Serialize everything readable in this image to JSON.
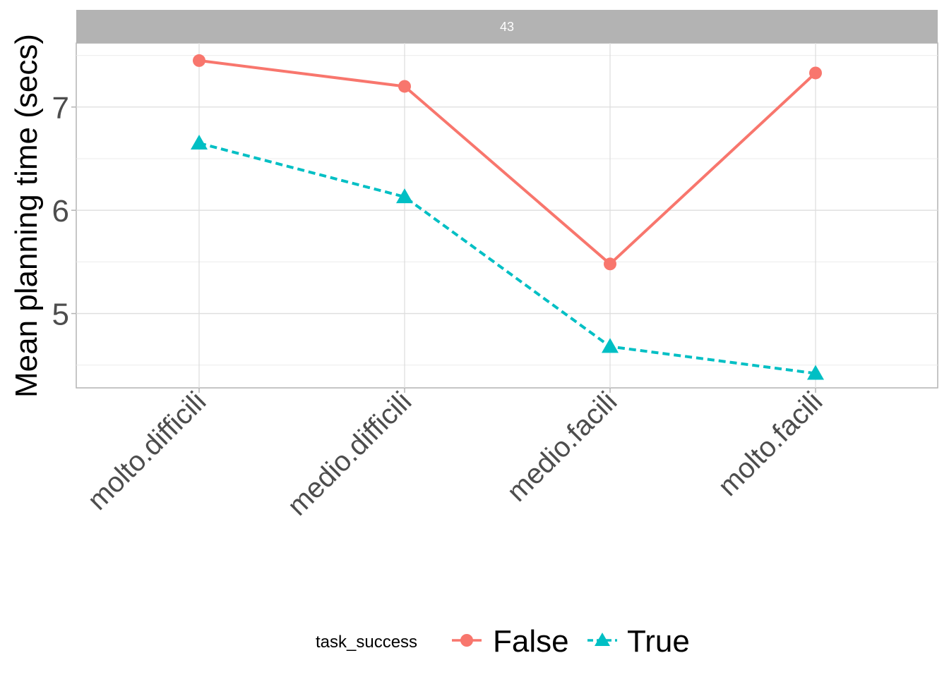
{
  "chart_data": {
    "type": "line",
    "facet_label": "43",
    "categories": [
      "molto.difficili",
      "medio.difficili",
      "medio.facili",
      "molto.facili"
    ],
    "ylabel": "Mean planning time (secs)",
    "xlabel": "",
    "ylim": [
      4.28,
      7.62
    ],
    "yticks": [
      5,
      6,
      7
    ],
    "grid": true,
    "legend": {
      "title": "task_success",
      "position": "bottom"
    },
    "series": [
      {
        "name": "False",
        "values": [
          7.45,
          7.2,
          5.48,
          7.33
        ],
        "color": "#F8766D",
        "marker": "circle",
        "linestyle": "solid"
      },
      {
        "name": "True",
        "values": [
          6.65,
          6.13,
          4.68,
          4.42
        ],
        "color": "#00BFC4",
        "marker": "triangle",
        "linestyle": "dashed"
      }
    ]
  }
}
